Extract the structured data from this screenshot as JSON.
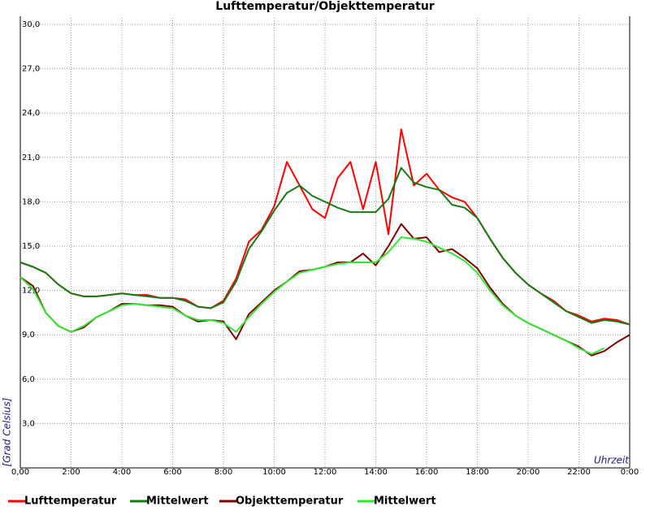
{
  "chart_data": {
    "type": "line",
    "title": "Lufttemperatur/Objekttemperatur",
    "y_label": "[Grad Celsius]",
    "x_label": "Uhrzeit",
    "x": [
      0,
      0.5,
      1,
      1.5,
      2,
      2.5,
      3,
      3.5,
      4,
      4.5,
      5,
      5.5,
      6,
      6.5,
      7,
      7.5,
      8,
      8.5,
      9,
      9.5,
      10,
      10.5,
      11,
      11.5,
      12,
      12.5,
      13,
      13.5,
      14,
      14.5,
      15,
      15.5,
      16,
      16.5,
      17,
      17.5,
      18,
      18.5,
      19,
      19.5,
      20,
      20.5,
      21,
      21.5,
      22,
      22.5,
      23,
      23.5,
      24
    ],
    "series": [
      {
        "name": "Lufttemperatur",
        "color": "#ff0000",
        "values": [
          13.9,
          13.6,
          13.2,
          12.4,
          11.8,
          11.6,
          11.6,
          11.7,
          11.8,
          11.7,
          11.7,
          11.5,
          11.5,
          11.4,
          10.9,
          10.8,
          11.3,
          12.8,
          15.3,
          16.1,
          17.7,
          20.7,
          19.1,
          17.5,
          16.9,
          19.6,
          20.7,
          17.5,
          20.7,
          15.8,
          22.9,
          19.1,
          19.9,
          18.8,
          18.3,
          18.0,
          16.9,
          15.5,
          14.2,
          13.2,
          12.4,
          11.8,
          11.3,
          10.6,
          10.3,
          9.9,
          10.1,
          10.0,
          9.7
        ]
      },
      {
        "name": "Mittelwert",
        "color": "#167a16",
        "values": [
          13.9,
          13.6,
          13.2,
          12.4,
          11.8,
          11.6,
          11.6,
          11.7,
          11.8,
          11.7,
          11.6,
          11.5,
          11.5,
          11.3,
          10.9,
          10.8,
          11.2,
          12.6,
          14.8,
          16.0,
          17.4,
          18.6,
          19.1,
          18.4,
          18.0,
          17.6,
          17.3,
          17.3,
          17.3,
          18.2,
          20.3,
          19.3,
          19.0,
          18.8,
          17.8,
          17.6,
          16.9,
          15.5,
          14.2,
          13.2,
          12.4,
          11.8,
          11.2,
          10.6,
          10.2,
          9.8,
          10.0,
          9.9,
          9.7
        ]
      },
      {
        "name": "Objekttemperatur",
        "color": "#800000",
        "values": [
          12.9,
          12.3,
          10.5,
          9.6,
          9.2,
          9.5,
          10.2,
          10.6,
          11.1,
          11.1,
          11.0,
          11.0,
          10.9,
          10.3,
          9.9,
          10.0,
          9.9,
          8.7,
          10.4,
          11.2,
          12.0,
          12.6,
          13.3,
          13.4,
          13.6,
          13.9,
          13.9,
          14.5,
          13.7,
          15.0,
          16.5,
          15.5,
          15.6,
          14.6,
          14.8,
          14.2,
          13.5,
          12.2,
          11.1,
          10.3,
          9.8,
          9.4,
          9.0,
          8.6,
          8.2,
          7.6,
          7.9,
          8.5,
          9.0
        ]
      },
      {
        "name": "Mittelwert",
        "color": "#33e533",
        "values": [
          12.9,
          12.1,
          10.5,
          9.6,
          9.2,
          9.6,
          10.2,
          10.6,
          11.0,
          11.1,
          11.0,
          10.9,
          10.8,
          10.3,
          10.0,
          10.0,
          9.8,
          9.2,
          10.2,
          11.1,
          11.9,
          12.6,
          13.2,
          13.4,
          13.6,
          13.8,
          13.9,
          13.9,
          13.9,
          14.6,
          15.6,
          15.5,
          15.3,
          14.9,
          14.5,
          14.0,
          13.2,
          12.0,
          11.0,
          10.3,
          9.8,
          9.4,
          9.0,
          8.6,
          8.1,
          7.7,
          8.1,
          null,
          null
        ]
      }
    ],
    "xlim": [
      0,
      24
    ],
    "ylim": [
      0,
      30
    ],
    "xticks": [
      {
        "value": 0,
        "label": "0,00"
      },
      {
        "value": 2,
        "label": "2:00"
      },
      {
        "value": 4,
        "label": "4:00"
      },
      {
        "value": 6,
        "label": "6:00"
      },
      {
        "value": 8,
        "label": "8:00"
      },
      {
        "value": 10,
        "label": "10:00"
      },
      {
        "value": 12,
        "label": "12:00"
      },
      {
        "value": 14,
        "label": "14:00"
      },
      {
        "value": 16,
        "label": "16:00"
      },
      {
        "value": 18,
        "label": "18:00"
      },
      {
        "value": 20,
        "label": "20:00"
      },
      {
        "value": 22,
        "label": "22:00"
      },
      {
        "value": 24,
        "label": "0:00"
      }
    ],
    "yticks": [
      {
        "value": 3,
        "label": "3,0"
      },
      {
        "value": 6,
        "label": "6,0"
      },
      {
        "value": 9,
        "label": "9,0"
      },
      {
        "value": 12,
        "label": "12,0"
      },
      {
        "value": 15,
        "label": "15,0"
      },
      {
        "value": 18,
        "label": "18,0"
      },
      {
        "value": 21,
        "label": "21,0"
      },
      {
        "value": 24,
        "label": "24,0"
      },
      {
        "value": 27,
        "label": "27,0"
      },
      {
        "value": 30,
        "label": "30,0"
      }
    ],
    "grid": true,
    "legend": "bottom"
  }
}
